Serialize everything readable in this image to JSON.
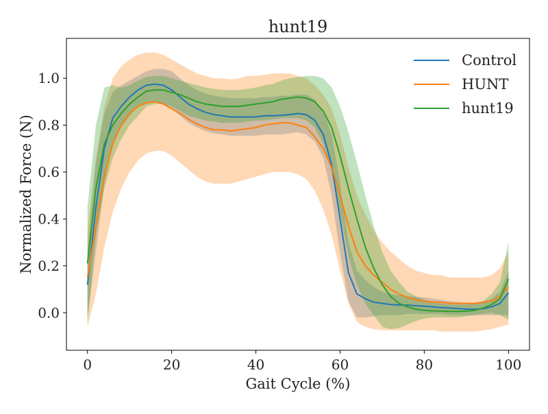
{
  "chart_data": {
    "type": "line",
    "title": "hunt19",
    "xlabel": "Gait Cycle (%)",
    "ylabel": "Normalized Force (N)",
    "xlim": [
      -5,
      105
    ],
    "ylim": [
      -0.16,
      1.17
    ],
    "xticks": [
      0,
      20,
      40,
      60,
      80,
      100
    ],
    "yticks": [
      0.0,
      0.2,
      0.4,
      0.6,
      0.8,
      1.0
    ],
    "xtick_labels": [
      "0",
      "20",
      "40",
      "60",
      "80",
      "100"
    ],
    "ytick_labels": [
      "0.0",
      "0.2",
      "0.4",
      "0.6",
      "0.8",
      "1.0"
    ],
    "legend_position": "top-right",
    "grid": false,
    "x": [
      0,
      2,
      4,
      6,
      8,
      10,
      12,
      14,
      16,
      18,
      20,
      22,
      24,
      26,
      28,
      30,
      32,
      34,
      36,
      38,
      40,
      42,
      44,
      46,
      48,
      50,
      52,
      54,
      56,
      58,
      60,
      62,
      64,
      66,
      68,
      70,
      72,
      74,
      76,
      78,
      80,
      82,
      84,
      86,
      88,
      90,
      92,
      94,
      96,
      98,
      100
    ],
    "series": [
      {
        "name": "Control",
        "color": "#1f77b4",
        "mean": [
          0.12,
          0.45,
          0.7,
          0.83,
          0.88,
          0.92,
          0.95,
          0.97,
          0.975,
          0.97,
          0.95,
          0.92,
          0.89,
          0.87,
          0.855,
          0.845,
          0.84,
          0.835,
          0.835,
          0.835,
          0.835,
          0.84,
          0.84,
          0.842,
          0.845,
          0.85,
          0.845,
          0.82,
          0.76,
          0.63,
          0.4,
          0.17,
          0.08,
          0.06,
          0.045,
          0.04,
          0.035,
          0.033,
          0.032,
          0.03,
          0.028,
          0.025,
          0.022,
          0.02,
          0.018,
          0.015,
          0.015,
          0.017,
          0.025,
          0.04,
          0.085
        ],
        "lower": [
          -0.02,
          0.26,
          0.55,
          0.72,
          0.79,
          0.84,
          0.88,
          0.9,
          0.9,
          0.89,
          0.87,
          0.84,
          0.81,
          0.79,
          0.775,
          0.765,
          0.76,
          0.755,
          0.755,
          0.755,
          0.755,
          0.76,
          0.76,
          0.76,
          0.765,
          0.77,
          0.76,
          0.73,
          0.66,
          0.5,
          0.25,
          0.05,
          -0.02,
          -0.02,
          -0.015,
          -0.01,
          -0.01,
          -0.01,
          -0.005,
          -0.005,
          -0.005,
          -0.005,
          -0.005,
          -0.01,
          -0.01,
          -0.01,
          -0.01,
          -0.01,
          -0.01,
          -0.01,
          -0.01
        ],
        "upper": [
          0.27,
          0.64,
          0.85,
          0.94,
          0.97,
          0.99,
          1.01,
          1.03,
          1.04,
          1.04,
          1.03,
          1.0,
          0.97,
          0.95,
          0.935,
          0.925,
          0.92,
          0.915,
          0.915,
          0.915,
          0.915,
          0.92,
          0.92,
          0.925,
          0.925,
          0.93,
          0.93,
          0.91,
          0.86,
          0.76,
          0.55,
          0.3,
          0.18,
          0.14,
          0.11,
          0.09,
          0.08,
          0.075,
          0.07,
          0.068,
          0.065,
          0.06,
          0.055,
          0.05,
          0.046,
          0.042,
          0.04,
          0.045,
          0.06,
          0.09,
          0.18
        ]
      },
      {
        "name": "HUNT",
        "color": "#ff7f0e",
        "mean": [
          0.15,
          0.37,
          0.58,
          0.72,
          0.8,
          0.85,
          0.88,
          0.895,
          0.9,
          0.89,
          0.87,
          0.85,
          0.825,
          0.805,
          0.79,
          0.78,
          0.78,
          0.775,
          0.78,
          0.785,
          0.79,
          0.8,
          0.805,
          0.81,
          0.81,
          0.8,
          0.79,
          0.75,
          0.7,
          0.62,
          0.5,
          0.37,
          0.26,
          0.2,
          0.16,
          0.13,
          0.1,
          0.08,
          0.065,
          0.055,
          0.05,
          0.045,
          0.045,
          0.04,
          0.04,
          0.04,
          0.04,
          0.045,
          0.05,
          0.07,
          0.11
        ],
        "lower": [
          -0.06,
          0.08,
          0.28,
          0.43,
          0.53,
          0.6,
          0.65,
          0.68,
          0.69,
          0.69,
          0.67,
          0.64,
          0.61,
          0.58,
          0.56,
          0.55,
          0.55,
          0.55,
          0.56,
          0.57,
          0.58,
          0.59,
          0.6,
          0.6,
          0.6,
          0.59,
          0.57,
          0.52,
          0.44,
          0.33,
          0.18,
          0.04,
          -0.04,
          -0.06,
          -0.07,
          -0.075,
          -0.075,
          -0.075,
          -0.075,
          -0.075,
          -0.075,
          -0.075,
          -0.08,
          -0.08,
          -0.08,
          -0.08,
          -0.08,
          -0.075,
          -0.07,
          -0.06,
          -0.05
        ],
        "upper": [
          0.35,
          0.66,
          0.88,
          1.0,
          1.05,
          1.08,
          1.1,
          1.11,
          1.11,
          1.1,
          1.08,
          1.06,
          1.04,
          1.02,
          1.01,
          1.0,
          1.0,
          0.995,
          1.0,
          1.01,
          1.01,
          1.015,
          1.02,
          1.02,
          1.02,
          1.01,
          1.0,
          0.97,
          0.93,
          0.87,
          0.76,
          0.62,
          0.5,
          0.42,
          0.35,
          0.3,
          0.26,
          0.23,
          0.2,
          0.18,
          0.17,
          0.16,
          0.16,
          0.15,
          0.15,
          0.15,
          0.15,
          0.15,
          0.16,
          0.19,
          0.26
        ]
      },
      {
        "name": "hunt19",
        "color": "#2ca02c",
        "mean": [
          0.21,
          0.53,
          0.72,
          0.8,
          0.85,
          0.89,
          0.92,
          0.945,
          0.95,
          0.95,
          0.94,
          0.93,
          0.915,
          0.9,
          0.89,
          0.885,
          0.88,
          0.88,
          0.88,
          0.885,
          0.89,
          0.895,
          0.9,
          0.91,
          0.915,
          0.92,
          0.915,
          0.9,
          0.86,
          0.79,
          0.67,
          0.53,
          0.4,
          0.28,
          0.19,
          0.12,
          0.07,
          0.04,
          0.025,
          0.015,
          0.01,
          0.008,
          0.007,
          0.006,
          0.006,
          0.007,
          0.01,
          0.02,
          0.035,
          0.06,
          0.145
        ],
        "lower": [
          -0.05,
          0.33,
          0.53,
          0.66,
          0.74,
          0.8,
          0.84,
          0.88,
          0.89,
          0.89,
          0.88,
          0.86,
          0.84,
          0.83,
          0.82,
          0.815,
          0.81,
          0.81,
          0.81,
          0.815,
          0.82,
          0.82,
          0.825,
          0.83,
          0.83,
          0.83,
          0.82,
          0.79,
          0.72,
          0.6,
          0.43,
          0.24,
          0.12,
          0.04,
          -0.01,
          -0.06,
          -0.07,
          -0.065,
          -0.05,
          -0.035,
          -0.025,
          -0.02,
          -0.02,
          -0.02,
          -0.02,
          -0.015,
          -0.01,
          -0.005,
          0.0,
          -0.01,
          -0.03
        ],
        "upper": [
          0.45,
          0.8,
          0.96,
          0.97,
          0.96,
          0.97,
          0.99,
          1.005,
          1.01,
          1.01,
          1.0,
          0.99,
          0.98,
          0.97,
          0.96,
          0.955,
          0.95,
          0.95,
          0.95,
          0.955,
          0.96,
          0.97,
          0.975,
          0.99,
          1.0,
          1.005,
          1.01,
          1.01,
          1.0,
          0.96,
          0.88,
          0.77,
          0.64,
          0.5,
          0.37,
          0.26,
          0.18,
          0.13,
          0.09,
          0.07,
          0.055,
          0.045,
          0.04,
          0.035,
          0.035,
          0.035,
          0.04,
          0.05,
          0.08,
          0.13,
          0.3
        ]
      }
    ]
  }
}
